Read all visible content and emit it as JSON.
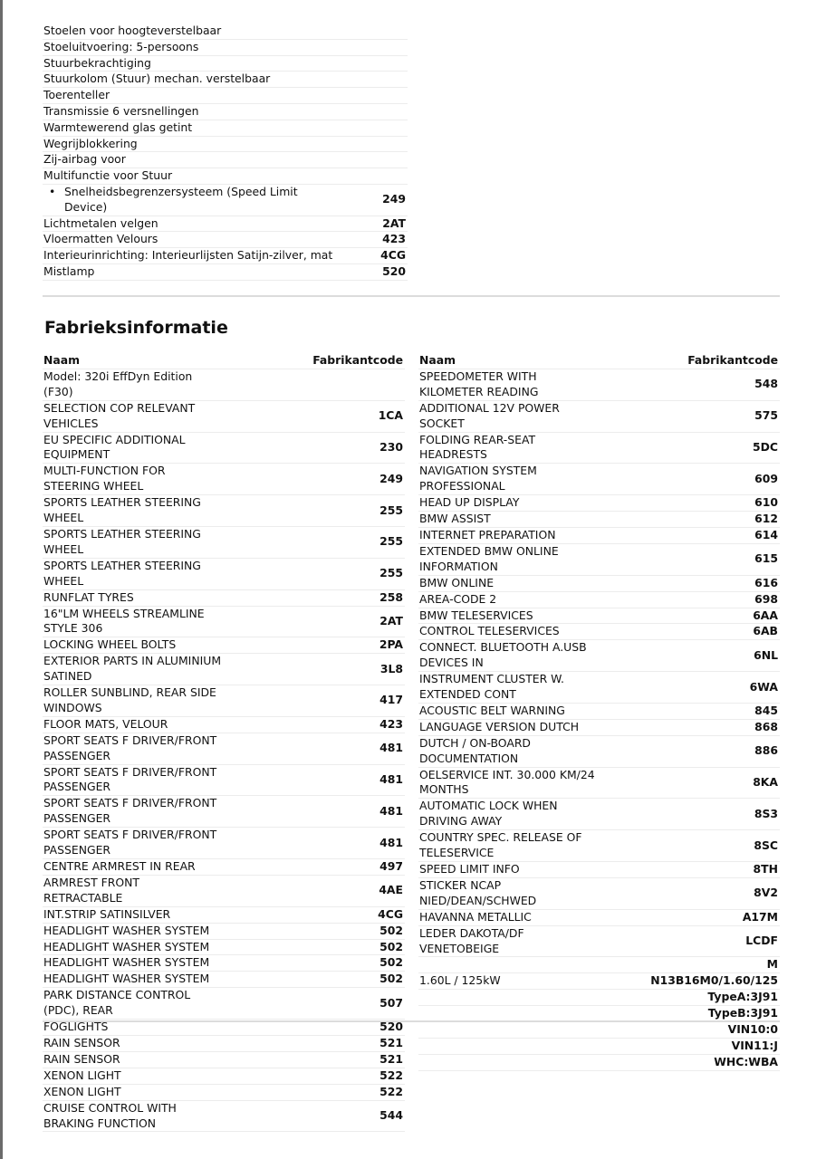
{
  "equipment_list": [
    {
      "name": "Stoelen voor hoogteverstelbaar",
      "code": ""
    },
    {
      "name": "Stoeluitvoering: 5-persoons",
      "code": ""
    },
    {
      "name": "Stuurbekrachtiging",
      "code": ""
    },
    {
      "name": "Stuurkolom (Stuur) mechan. verstelbaar",
      "code": ""
    },
    {
      "name": "Toerenteller",
      "code": ""
    },
    {
      "name": "Transmissie 6 versnellingen",
      "code": ""
    },
    {
      "name": "Warmtewerend glas getint",
      "code": ""
    },
    {
      "name": "Wegrijblokkering",
      "code": ""
    },
    {
      "name": "Zij-airbag voor",
      "code": ""
    },
    {
      "name": "Multifunctie voor Stuur",
      "code": ""
    },
    {
      "name": "Snelheidsbegrenzersysteem (Speed Limit Device)",
      "code": "249",
      "bullet": true
    },
    {
      "name": "Lichtmetalen velgen",
      "code": "2AT"
    },
    {
      "name": "Vloermatten Velours",
      "code": "423"
    },
    {
      "name": "Interieurinrichting: Interieurlijsten Satijn-zilver, mat",
      "code": "4CG"
    },
    {
      "name": "Mistlamp",
      "code": "520"
    }
  ],
  "factory_section": {
    "title": "Fabrieksinformatie",
    "col_name": "Naam",
    "col_code": "Fabrikantcode",
    "left_rows": [
      {
        "name": "Model: 320i EffDyn Edition (F30)",
        "code": ""
      },
      {
        "name": "SELECTION COP RELEVANT VEHICLES",
        "code": "1CA"
      },
      {
        "name": "EU SPECIFIC ADDITIONAL EQUIPMENT",
        "code": "230"
      },
      {
        "name": "MULTI-FUNCTION FOR STEERING WHEEL",
        "code": "249"
      },
      {
        "name": "SPORTS LEATHER STEERING WHEEL",
        "code": "255"
      },
      {
        "name": "SPORTS LEATHER STEERING WHEEL",
        "code": "255"
      },
      {
        "name": "SPORTS LEATHER STEERING WHEEL",
        "code": "255"
      },
      {
        "name": "RUNFLAT TYRES",
        "code": "258"
      },
      {
        "name": "16\"LM WHEELS STREAMLINE STYLE 306",
        "code": "2AT"
      },
      {
        "name": "LOCKING WHEEL BOLTS",
        "code": "2PA"
      },
      {
        "name": "EXTERIOR PARTS IN ALUMINIUM SATINED",
        "code": "3L8"
      },
      {
        "name": "ROLLER SUNBLIND, REAR SIDE WINDOWS",
        "code": "417"
      },
      {
        "name": "FLOOR MATS, VELOUR",
        "code": "423"
      },
      {
        "name": "SPORT SEATS F DRIVER/FRONT PASSENGER",
        "code": "481"
      },
      {
        "name": "SPORT SEATS F DRIVER/FRONT PASSENGER",
        "code": "481"
      },
      {
        "name": "SPORT SEATS F DRIVER/FRONT PASSENGER",
        "code": "481"
      },
      {
        "name": "SPORT SEATS F DRIVER/FRONT PASSENGER",
        "code": "481"
      },
      {
        "name": "CENTRE ARMREST IN REAR",
        "code": "497"
      },
      {
        "name": "ARMREST FRONT RETRACTABLE",
        "code": "4AE"
      },
      {
        "name": "INT.STRIP SATINSILVER",
        "code": "4CG"
      },
      {
        "name": "HEADLIGHT WASHER SYSTEM",
        "code": "502"
      },
      {
        "name": "HEADLIGHT WASHER SYSTEM",
        "code": "502"
      },
      {
        "name": "HEADLIGHT WASHER SYSTEM",
        "code": "502"
      },
      {
        "name": "HEADLIGHT WASHER SYSTEM",
        "code": "502"
      },
      {
        "name": "PARK DISTANCE CONTROL (PDC), REAR",
        "code": "507"
      },
      {
        "name": "FOGLIGHTS",
        "code": "520"
      },
      {
        "name": "RAIN SENSOR",
        "code": "521"
      },
      {
        "name": "RAIN SENSOR",
        "code": "521"
      },
      {
        "name": "XENON LIGHT",
        "code": "522"
      },
      {
        "name": "XENON LIGHT",
        "code": "522"
      },
      {
        "name": "CRUISE CONTROL WITH BRAKING FUNCTION",
        "code": "544"
      }
    ],
    "right_rows": [
      {
        "name": "SPEEDOMETER WITH KILOMETER READING",
        "code": "548"
      },
      {
        "name": "ADDITIONAL 12V POWER SOCKET",
        "code": "575"
      },
      {
        "name": "FOLDING REAR-SEAT HEADRESTS",
        "code": "5DC"
      },
      {
        "name": "NAVIGATION SYSTEM PROFESSIONAL",
        "code": "609"
      },
      {
        "name": "HEAD UP DISPLAY",
        "code": "610"
      },
      {
        "name": "BMW ASSIST",
        "code": "612"
      },
      {
        "name": "INTERNET PREPARATION",
        "code": "614"
      },
      {
        "name": "EXTENDED BMW ONLINE INFORMATION",
        "code": "615"
      },
      {
        "name": "BMW ONLINE",
        "code": "616"
      },
      {
        "name": "AREA-CODE 2",
        "code": "698"
      },
      {
        "name": "BMW TELESERVICES",
        "code": "6AA"
      },
      {
        "name": "CONTROL TELESERVICES",
        "code": "6AB"
      },
      {
        "name": "CONNECT. BLUETOOTH A.USB DEVICES IN",
        "code": "6NL"
      },
      {
        "name": "INSTRUMENT CLUSTER W. EXTENDED CONT",
        "code": "6WA"
      },
      {
        "name": "ACOUSTIC BELT WARNING",
        "code": "845"
      },
      {
        "name": "LANGUAGE VERSION DUTCH",
        "code": "868"
      },
      {
        "name": "DUTCH / ON-BOARD DOCUMENTATION",
        "code": "886"
      },
      {
        "name": "OELSERVICE INT. 30.000 KM/24 MONTHS",
        "code": "8KA"
      },
      {
        "name": "AUTOMATIC LOCK WHEN DRIVING AWAY",
        "code": "8S3"
      },
      {
        "name": "COUNTRY SPEC. RELEASE OF TELESERVICE",
        "code": "8SC"
      },
      {
        "name": "SPEED LIMIT INFO",
        "code": "8TH"
      },
      {
        "name": "STICKER NCAP NIED/DEAN/SCHWED",
        "code": "8V2"
      },
      {
        "name": "HAVANNA METALLIC",
        "code": "A17M"
      },
      {
        "name": "LEDER DAKOTA/DF VENETOBEIGE",
        "code": "LCDF"
      },
      {
        "name": "",
        "code": "M"
      },
      {
        "name": "1.60L / 125kW",
        "code": "N13B16M0/1.60/125"
      },
      {
        "name": "",
        "code": "TypeA:3J91"
      },
      {
        "name": "",
        "code": "TypeB:3J91"
      },
      {
        "name": "",
        "code": "VIN10:0"
      },
      {
        "name": "",
        "code": "VIN11:J"
      },
      {
        "name": "",
        "code": "WHC:WBA"
      }
    ]
  }
}
